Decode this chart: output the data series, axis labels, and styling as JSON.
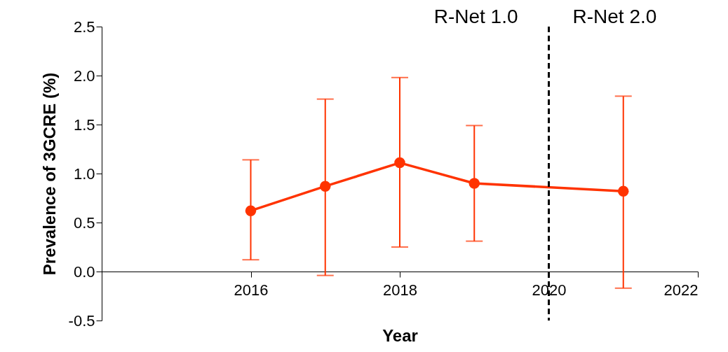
{
  "chart_data": {
    "type": "line",
    "xlabel": "Year",
    "ylabel": "Prevalence of 3GCRE (%)",
    "x": [
      2016,
      2017,
      2018,
      2019,
      2021
    ],
    "series": [
      {
        "color": "#ff3300",
        "values": [
          0.62,
          0.87,
          1.11,
          0.9,
          0.82
        ],
        "errors": [
          [
            0.12,
            1.14
          ],
          [
            -0.04,
            1.76
          ],
          [
            0.25,
            1.98
          ],
          [
            0.31,
            1.49
          ],
          [
            -0.17,
            1.79
          ]
        ]
      }
    ],
    "xlim": [
      2014,
      2022
    ],
    "xticks": [
      2016,
      2018,
      2020,
      2022
    ],
    "ylim": [
      -0.5,
      2.5
    ],
    "yticks": [
      {
        "value": -0.5,
        "label": "-0.5"
      },
      {
        "value": 0,
        "label": "0.0"
      },
      {
        "value": 0.5,
        "label": "0.5"
      },
      {
        "value": 1,
        "label": "1.0"
      },
      {
        "value": 1.5,
        "label": "1.5"
      },
      {
        "value": 2,
        "label": "2.0"
      },
      {
        "value": 2.5,
        "label": "2.5"
      }
    ],
    "ref_lines": [
      {
        "axis": "x",
        "value": 2020,
        "color": "#000000",
        "line_style": "dashed"
      }
    ],
    "annotations": [
      "R-Net 1.0",
      "R-Net 2.0"
    ],
    "marker": "circle",
    "line_style": "solid",
    "grid": false
  }
}
